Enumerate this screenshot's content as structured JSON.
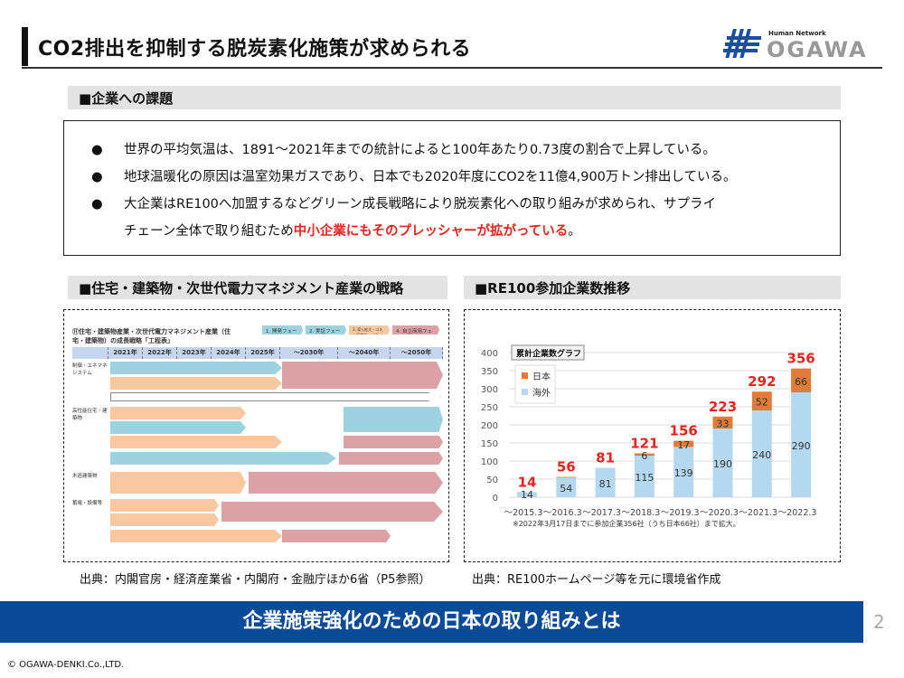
{
  "header": {
    "title": "CO2排出を抑制する脱炭素化施策が求められる",
    "logo_tagline": "Human Network",
    "logo_text": "OGAWA"
  },
  "issues": {
    "heading": "■企業への課題",
    "bullet": "●",
    "items": [
      "世界の平均気温は、1891～2021年までの統計によると100年あたり0.73度の割合で上昇している。",
      "地球温暖化の原因は温室効果ガスであり、日本でも2020年度にCO2を11億4,900万トン排出している。",
      "大企業はRE100へ加盟するなどグリーン成長戦略により脱炭素化への取り組みが求められ、サプライ"
    ],
    "item3_cont_pre": "チェーン全体で取り組むため",
    "item3_cont_red": "中小企業にもそのプレッシャーが拡がっている",
    "item3_cont_post": "。"
  },
  "left": {
    "heading": "■住宅・建築物・次世代電力マネジメント産業の戦略",
    "diagram_title": "⑪住宅・建築物産業・次世代電力マネジメント産業（住宅・建築物）の成長戦略「工程表」",
    "phases": [
      "1. 開発フェーズ",
      "2. 実証フェーズ",
      "3. 導入拡大・コスト低減フェーズ",
      "4. 自立商用フェーズ"
    ],
    "years": [
      "2021年",
      "2022年",
      "2023年",
      "2024年",
      "2025年",
      "～2030年",
      "～2040年",
      "～2050年"
    ],
    "rows": [
      "制御・エネマネシステム",
      "高性能住宅・建築物",
      "木造建築物",
      "蓄電・設備等"
    ],
    "source": "出典：内閣官房・経済産業省・内閣府・金融庁ほか6省（P5参照）"
  },
  "right": {
    "heading": "■RE100参加企業数推移",
    "source": "出典：RE100ホームページ等を元に環境省作成"
  },
  "chart_data": {
    "type": "bar",
    "stacked": true,
    "title": "累計企業数グラフ",
    "categories": [
      "～2015.3",
      "～2016.3",
      "～2017.3",
      "～2018.3",
      "～2019.3",
      "～2020.3",
      "～2021.3",
      "～2022.3"
    ],
    "series": [
      {
        "name": "海外",
        "color": "#b4d8f0",
        "values": [
          14,
          54,
          81,
          115,
          139,
          190,
          240,
          290
        ]
      },
      {
        "name": "日本",
        "color": "#e07b39",
        "values": [
          0,
          2,
          0,
          6,
          17,
          33,
          52,
          66
        ]
      }
    ],
    "totals": [
      14,
      56,
      81,
      121,
      156,
      223,
      292,
      356
    ],
    "ylim": [
      0,
      400
    ],
    "yticks": [
      0,
      50,
      100,
      150,
      200,
      250,
      300,
      350,
      400
    ],
    "legend": "top-left",
    "note": "※2022年3月17日までに参加企業356社（うち日本66社）まで拡大。"
  },
  "banner": "企業施策強化のための日本の取り組みとは",
  "page_number": "2",
  "copyright": "© OGAWA-DENKI.Co.,LTD."
}
